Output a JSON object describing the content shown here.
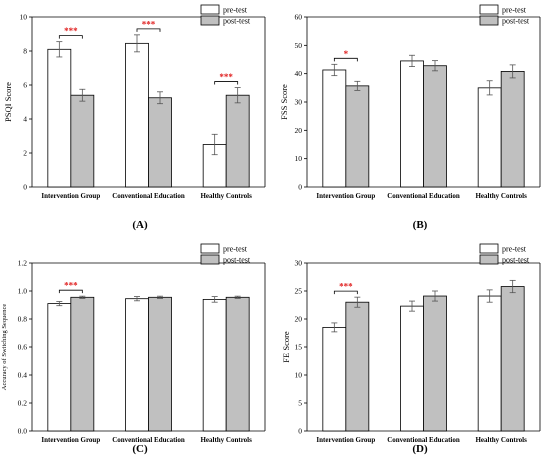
{
  "colors": {
    "pre": "#ffffff",
    "post": "#c0c0c0",
    "significance": "#e02020",
    "stroke": "#000000"
  },
  "chart_data": [
    {
      "type": "bar",
      "panel_label": "(A)",
      "ylabel": "PSQI Score",
      "ylim": [
        0,
        10
      ],
      "yticks": [
        "0",
        "2",
        "4",
        "6",
        "8",
        "10"
      ],
      "categories": [
        "Intervention Group",
        "Conventional Education",
        "Healthy Controls"
      ],
      "legend": {
        "position": "top-right",
        "entries": [
          "pre-test",
          "post-test"
        ]
      },
      "series": [
        {
          "name": "pre-test",
          "values": [
            8.1,
            8.45,
            2.5
          ],
          "errors": [
            0.45,
            0.5,
            0.6
          ]
        },
        {
          "name": "post-test",
          "values": [
            5.4,
            5.25,
            5.4
          ],
          "errors": [
            0.35,
            0.35,
            0.45
          ]
        }
      ],
      "significance": [
        {
          "category_index": 0,
          "label": "***"
        },
        {
          "category_index": 1,
          "label": "***"
        },
        {
          "category_index": 2,
          "label": "***"
        }
      ]
    },
    {
      "type": "bar",
      "panel_label": "(B)",
      "ylabel": "FSS Score",
      "ylim": [
        0,
        60
      ],
      "yticks": [
        "0",
        "10",
        "20",
        "30",
        "40",
        "50",
        "60"
      ],
      "categories": [
        "Intervention Group",
        "Conventional Education",
        "Healthy Controls"
      ],
      "legend": {
        "position": "top-right",
        "entries": [
          "pre-test",
          "post-test"
        ]
      },
      "series": [
        {
          "name": "pre-test",
          "values": [
            41.3,
            44.5,
            35.0
          ],
          "errors": [
            2.0,
            2.0,
            2.5
          ]
        },
        {
          "name": "post-test",
          "values": [
            35.7,
            42.8,
            40.8
          ],
          "errors": [
            1.6,
            1.8,
            2.3
          ]
        }
      ],
      "significance": [
        {
          "category_index": 0,
          "label": "*"
        }
      ]
    },
    {
      "type": "bar",
      "panel_label": "(C)",
      "ylabel": "Accuracy of Switching Sequence",
      "ylim": [
        0,
        1.2
      ],
      "yticks": [
        "0.0",
        "0.2",
        "0.4",
        "0.6",
        "0.8",
        "1.0",
        "1.2"
      ],
      "categories": [
        "Intervention Group",
        "Conventional Education",
        "Healthy Controls"
      ],
      "legend": {
        "position": "top-right",
        "entries": [
          "pre-test",
          "post-test"
        ]
      },
      "series": [
        {
          "name": "pre-test",
          "values": [
            0.91,
            0.945,
            0.94
          ],
          "errors": [
            0.015,
            0.015,
            0.02
          ]
        },
        {
          "name": "post-test",
          "values": [
            0.955,
            0.955,
            0.955
          ],
          "errors": [
            0.008,
            0.008,
            0.008
          ]
        }
      ],
      "significance": [
        {
          "category_index": 0,
          "label": "***"
        }
      ]
    },
    {
      "type": "bar",
      "panel_label": "(D)",
      "ylabel": "FE Score",
      "ylim": [
        0,
        30
      ],
      "yticks": [
        "0",
        "5",
        "10",
        "15",
        "20",
        "25",
        "30"
      ],
      "categories": [
        "Intervention Group",
        "Conventional Education",
        "Healthy Controls"
      ],
      "legend": {
        "position": "top-right",
        "entries": [
          "pre-test",
          "post-test"
        ]
      },
      "series": [
        {
          "name": "pre-test",
          "values": [
            18.5,
            22.3,
            24.1
          ],
          "errors": [
            0.8,
            0.9,
            1.1
          ]
        },
        {
          "name": "post-test",
          "values": [
            23.0,
            24.1,
            25.8
          ],
          "errors": [
            0.9,
            0.9,
            1.1
          ]
        }
      ],
      "significance": [
        {
          "category_index": 0,
          "label": "***"
        }
      ]
    }
  ]
}
